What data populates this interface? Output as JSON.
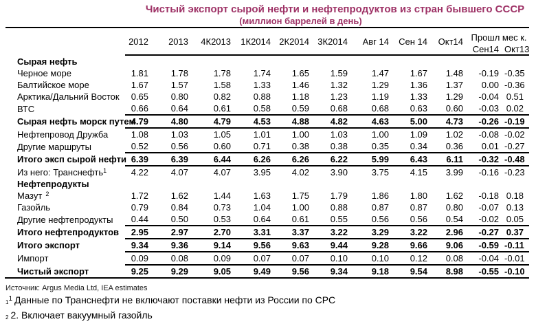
{
  "title": "Чистый экспорт сырой нефти и нефтепродуктов из стран бывшего СССР",
  "subtitle": "(миллион баррелей в день)",
  "colors": {
    "accent_title": "#9E3266",
    "rule": "#000000"
  },
  "table": {
    "columns": [
      "2012",
      "2013",
      "4К2013",
      "1К2014",
      "2К2014",
      "3К2014",
      "Авг 14",
      "Сен 14",
      "Окт14"
    ],
    "group_header": "Прошл мес к.",
    "group_columns": [
      "Сен14",
      "Окт13"
    ],
    "rows": [
      {
        "label": "Сырая нефть",
        "section": true,
        "values": []
      },
      {
        "label": "Черное море",
        "values": [
          "1.81",
          "1.78",
          "1.78",
          "1.74",
          "1.65",
          "1.59",
          "1.47",
          "1.67",
          "1.48",
          "-0.19",
          "-0.35"
        ]
      },
      {
        "label": "Балтийское море",
        "values": [
          "1.67",
          "1.57",
          "1.58",
          "1.33",
          "1.46",
          "1.32",
          "1.29",
          "1.36",
          "1.37",
          "0.00",
          "-0.36"
        ]
      },
      {
        "label": "Арктика/Дальний Восток",
        "values": [
          "0.65",
          "0.80",
          "0.82",
          "0.88",
          "1.18",
          "1.23",
          "1.19",
          "1.33",
          "1.29",
          "-0.04",
          "0.51"
        ]
      },
      {
        "label": "ВТС",
        "rule_below": true,
        "values": [
          "0.66",
          "0.64",
          "0.61",
          "0.58",
          "0.59",
          "0.68",
          "0.68",
          "0.63",
          "0.60",
          "-0.03",
          "0.02"
        ]
      },
      {
        "label": "Сырая нефть морск путем",
        "bold": true,
        "rule_below": true,
        "values": [
          "4.79",
          "4.80",
          "4.79",
          "4.53",
          "4.88",
          "4.82",
          "4.63",
          "5.00",
          "4.73",
          "-0.26",
          "-0.19"
        ]
      },
      {
        "label": "Нефтепровод Дружба",
        "values": [
          "1.08",
          "1.03",
          "1.05",
          "1.01",
          "1.00",
          "1.03",
          "1.00",
          "1.09",
          "1.02",
          "-0.08",
          "-0.02"
        ]
      },
      {
        "label": "Другие маршруты",
        "rule_below": true,
        "values": [
          "0.52",
          "0.56",
          "0.60",
          "0.71",
          "0.38",
          "0.38",
          "0.35",
          "0.34",
          "0.36",
          "0.01",
          "-0.27"
        ]
      },
      {
        "label": "Итого эксп сырой нефти",
        "bold": true,
        "rule_below": true,
        "values": [
          "6.39",
          "6.39",
          "6.44",
          "6.26",
          "6.26",
          "6.22",
          "5.99",
          "6.43",
          "6.11",
          "-0.32",
          "-0.48"
        ]
      },
      {
        "label": "Из него: Транснефть",
        "footnote_ref": "1",
        "ref_gap": false,
        "values": [
          "4.22",
          "4.07",
          "4.07",
          "3.95",
          "4.02",
          "3.90",
          "3.75",
          "4.15",
          "3.99",
          "-0.16",
          "-0.23"
        ]
      },
      {
        "label": "Нефтепродукты",
        "section": true,
        "values": []
      },
      {
        "label": "Мазут",
        "footnote_ref": "2",
        "ref_gap": true,
        "values": [
          "1.72",
          "1.62",
          "1.44",
          "1.63",
          "1.75",
          "1.79",
          "1.86",
          "1.80",
          "1.62",
          "-0.18",
          "0.18"
        ]
      },
      {
        "label": "Газойль",
        "values": [
          "0.79",
          "0.84",
          "0.73",
          "1.04",
          "1.00",
          "0.88",
          "0.87",
          "0.87",
          "0.80",
          "-0.07",
          "0.13"
        ]
      },
      {
        "label": "Другие нефтепродукты",
        "rule_below": true,
        "values": [
          "0.44",
          "0.50",
          "0.53",
          "0.64",
          "0.61",
          "0.55",
          "0.56",
          "0.56",
          "0.54",
          "-0.02",
          "0.05"
        ]
      },
      {
        "label": "Итого нефтепродуктов",
        "bold": true,
        "rule_below": true,
        "values": [
          "2.95",
          "2.97",
          "2.70",
          "3.31",
          "3.37",
          "3.22",
          "3.29",
          "3.22",
          "2.96",
          "-0.27",
          "0.37"
        ]
      },
      {
        "label": "Итого экспорт",
        "bold": true,
        "rule_below": true,
        "values": [
          "9.34",
          "9.36",
          "9.14",
          "9.56",
          "9.63",
          "9.44",
          "9.28",
          "9.66",
          "9.06",
          "-0.59",
          "-0.11"
        ]
      },
      {
        "label": "Импорт",
        "rule_below": true,
        "values": [
          "0.09",
          "0.08",
          "0.09",
          "0.07",
          "0.07",
          "0.10",
          "0.10",
          "0.12",
          "0.08",
          "-0.04",
          "-0.01"
        ]
      },
      {
        "label": "Чистый экспорт",
        "bold": true,
        "rule_full": true,
        "values": [
          "9.25",
          "9.29",
          "9.05",
          "9.49",
          "9.56",
          "9.34",
          "9.18",
          "9.54",
          "8.98",
          "-0.55",
          "-0.10"
        ]
      }
    ]
  },
  "footer": {
    "source": "Источник: Argus Media Ltd, IEA estimates",
    "fn1_tiny": "1",
    "fn1_sup": "1",
    "fn1_text": "Данные по Транснефти не включают поставки нефти из России по СРС",
    "fn2_tiny": "2",
    "fn2_text": "2. Включает вакуумный газойль"
  }
}
